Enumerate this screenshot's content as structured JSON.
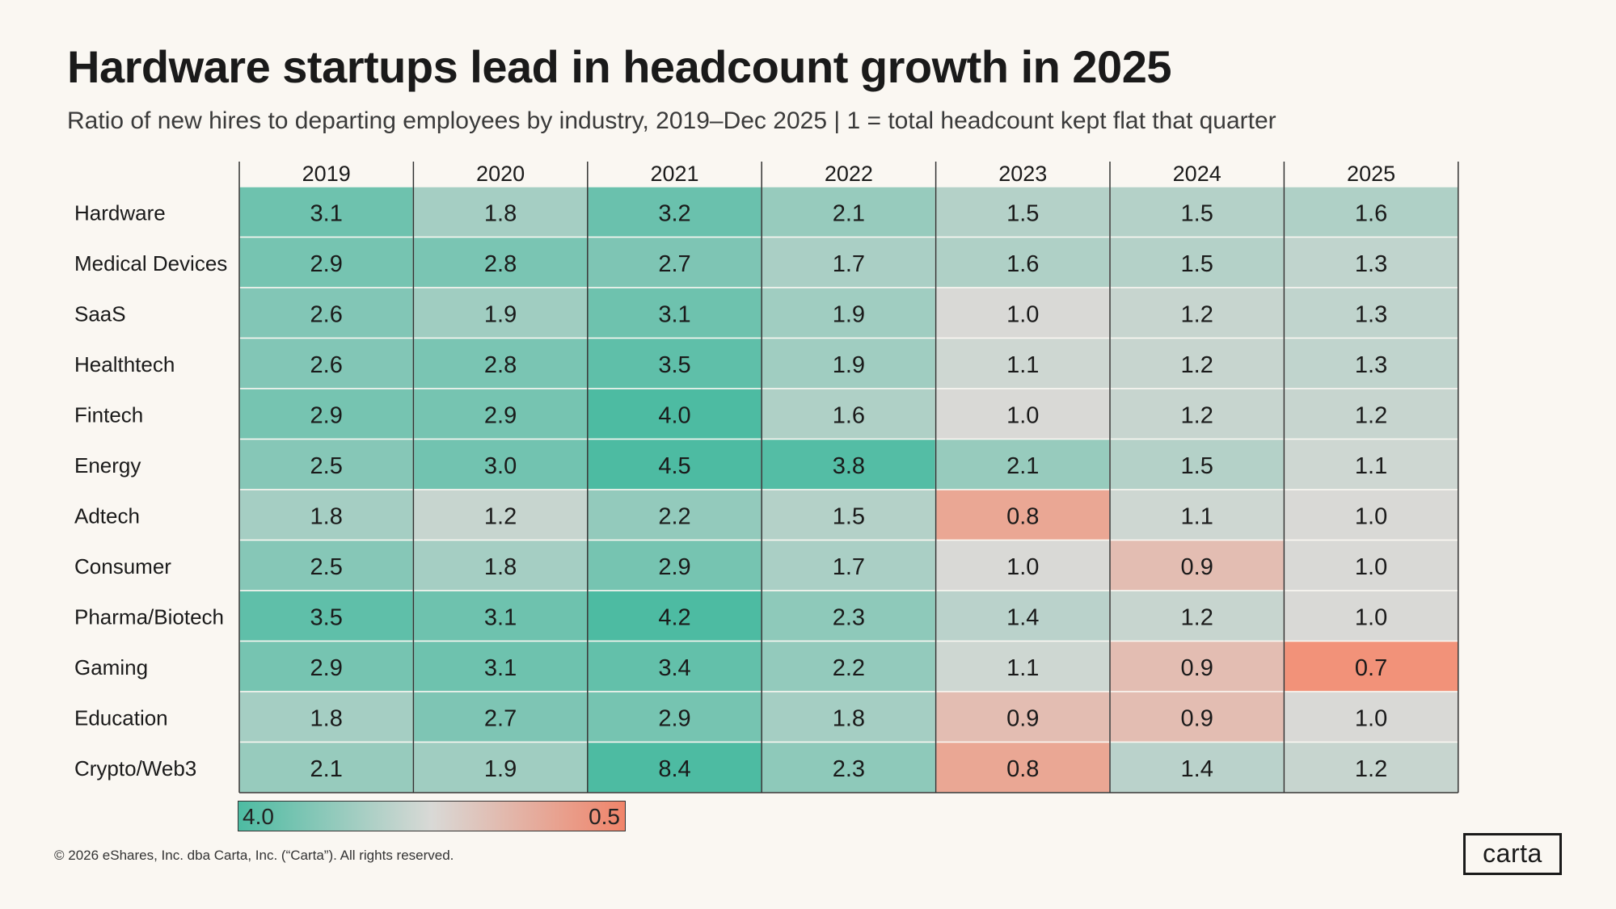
{
  "header": {
    "title": "Hardware startups lead in headcount growth in 2025",
    "subtitle": "Ratio of new hires to departing employees by industry, 2019–Dec 2025 | 1 = total headcount kept flat that quarter"
  },
  "chart_data": {
    "type": "heatmap",
    "title": "Hardware startups lead in headcount growth in 2025",
    "columns": [
      "2019",
      "2020",
      "2021",
      "2022",
      "2023",
      "2024",
      "2025"
    ],
    "rows": [
      "Hardware",
      "Medical Devices",
      "SaaS",
      "Healthtech",
      "Fintech",
      "Energy",
      "Adtech",
      "Consumer",
      "Pharma/Biotech",
      "Gaming",
      "Education",
      "Crypto/Web3"
    ],
    "values": [
      [
        3.1,
        1.8,
        3.2,
        2.1,
        1.5,
        1.5,
        1.6
      ],
      [
        2.9,
        2.8,
        2.7,
        1.7,
        1.6,
        1.5,
        1.3
      ],
      [
        2.6,
        1.9,
        3.1,
        1.9,
        1.0,
        1.2,
        1.3
      ],
      [
        2.6,
        2.8,
        3.5,
        1.9,
        1.1,
        1.2,
        1.3
      ],
      [
        2.9,
        2.9,
        4.0,
        1.6,
        1.0,
        1.2,
        1.2
      ],
      [
        2.5,
        3.0,
        4.5,
        3.8,
        2.1,
        1.5,
        1.1
      ],
      [
        1.8,
        1.2,
        2.2,
        1.5,
        0.8,
        1.1,
        1.0
      ],
      [
        2.5,
        1.8,
        2.9,
        1.7,
        1.0,
        0.9,
        1.0
      ],
      [
        3.5,
        3.1,
        4.2,
        2.3,
        1.4,
        1.2,
        1.0
      ],
      [
        2.9,
        3.1,
        3.4,
        2.2,
        1.1,
        0.9,
        0.7
      ],
      [
        1.8,
        2.7,
        2.9,
        1.8,
        0.9,
        0.9,
        1.0
      ],
      [
        2.1,
        1.9,
        8.4,
        2.3,
        0.8,
        1.4,
        1.2
      ]
    ],
    "value_labels": [
      [
        "3.1",
        "1.8",
        "3.2",
        "2.1",
        "1.5",
        "1.5",
        "1.6"
      ],
      [
        "2.9",
        "2.8",
        "2.7",
        "1.7",
        "1.6",
        "1.5",
        "1.3"
      ],
      [
        "2.6",
        "1.9",
        "3.1",
        "1.9",
        "1.0",
        "1.2",
        "1.3"
      ],
      [
        "2.6",
        "2.8",
        "3.5",
        "1.9",
        "1.1",
        "1.2",
        "1.3"
      ],
      [
        "2.9",
        "2.9",
        "4.0",
        "1.6",
        "1.0",
        "1.2",
        "1.2"
      ],
      [
        "2.5",
        "3.0",
        "4.5",
        "3.8",
        "2.1",
        "1.5",
        "1.1"
      ],
      [
        "1.8",
        "1.2",
        "2.2",
        "1.5",
        "0.8",
        "1.1",
        "1.0"
      ],
      [
        "2.5",
        "1.8",
        "2.9",
        "1.7",
        "1.0",
        "0.9",
        "1.0"
      ],
      [
        "3.5",
        "3.1",
        "4.2",
        "2.3",
        "1.4",
        "1.2",
        "1.0"
      ],
      [
        "2.9",
        "3.1",
        "3.4",
        "2.2",
        "1.1",
        "0.9",
        "0.7"
      ],
      [
        "1.8",
        "2.7",
        "2.9",
        "1.8",
        "0.9",
        "0.9",
        "1.0"
      ],
      [
        "2.1",
        "1.9",
        "8.4",
        "2.3",
        "0.8",
        "1.4",
        "1.2"
      ]
    ],
    "scale": {
      "high": 4.0,
      "low": 0.5,
      "neutral": 1.0,
      "high_label": "4.0",
      "low_label": "0.5",
      "high_color": "#4dbba2",
      "neutral_color": "#d9d9d6",
      "low_color": "#ff6b47"
    }
  },
  "footer": {
    "copyright": "© 2026 eShares, Inc. dba Carta, Inc. (“Carta”). All rights reserved.",
    "logo_text": "carta"
  }
}
